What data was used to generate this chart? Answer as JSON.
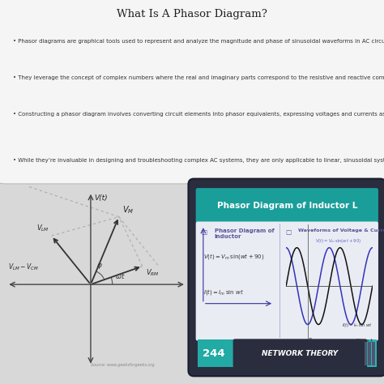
{
  "title": "What Is A Phasor Diagram?",
  "bg_color": "#d8d8d8",
  "bullet_points": [
    "Phasor diagrams are graphical tools used to represent and analyze the magnitude and phase of sinusoidal waveforms in AC circuits",
    "They leverage the concept of complex numbers where the real and imaginary parts correspond to the resistive and reactive components of a circuit, respectively",
    "Constructing a phasor diagram involves converting circuit elements into phasor equivalents, expressing voltages and currents as phasors, and plotting them on a complex plane",
    "While they’re invaluable in designing and troubleshooting complex AC systems, they are only applicable to linear, sinusoidal systems and aren’t suitable for circuits with non-sinusoidal waveforms or non-linear components"
  ],
  "right_panel_teal": "#1a9e9a",
  "right_panel_title": "Phasor Diagram of Inductor L",
  "bottom_bar_teal": "#2ab5b0",
  "bottom_number": "244",
  "bottom_text": "NETWORK THEORY",
  "source_text": "Source: www.geeksforgeeks.org",
  "phasor_bg": "#e8e8e8",
  "panel_bg": "#dee0e8",
  "content_bg": "#eaecf4"
}
